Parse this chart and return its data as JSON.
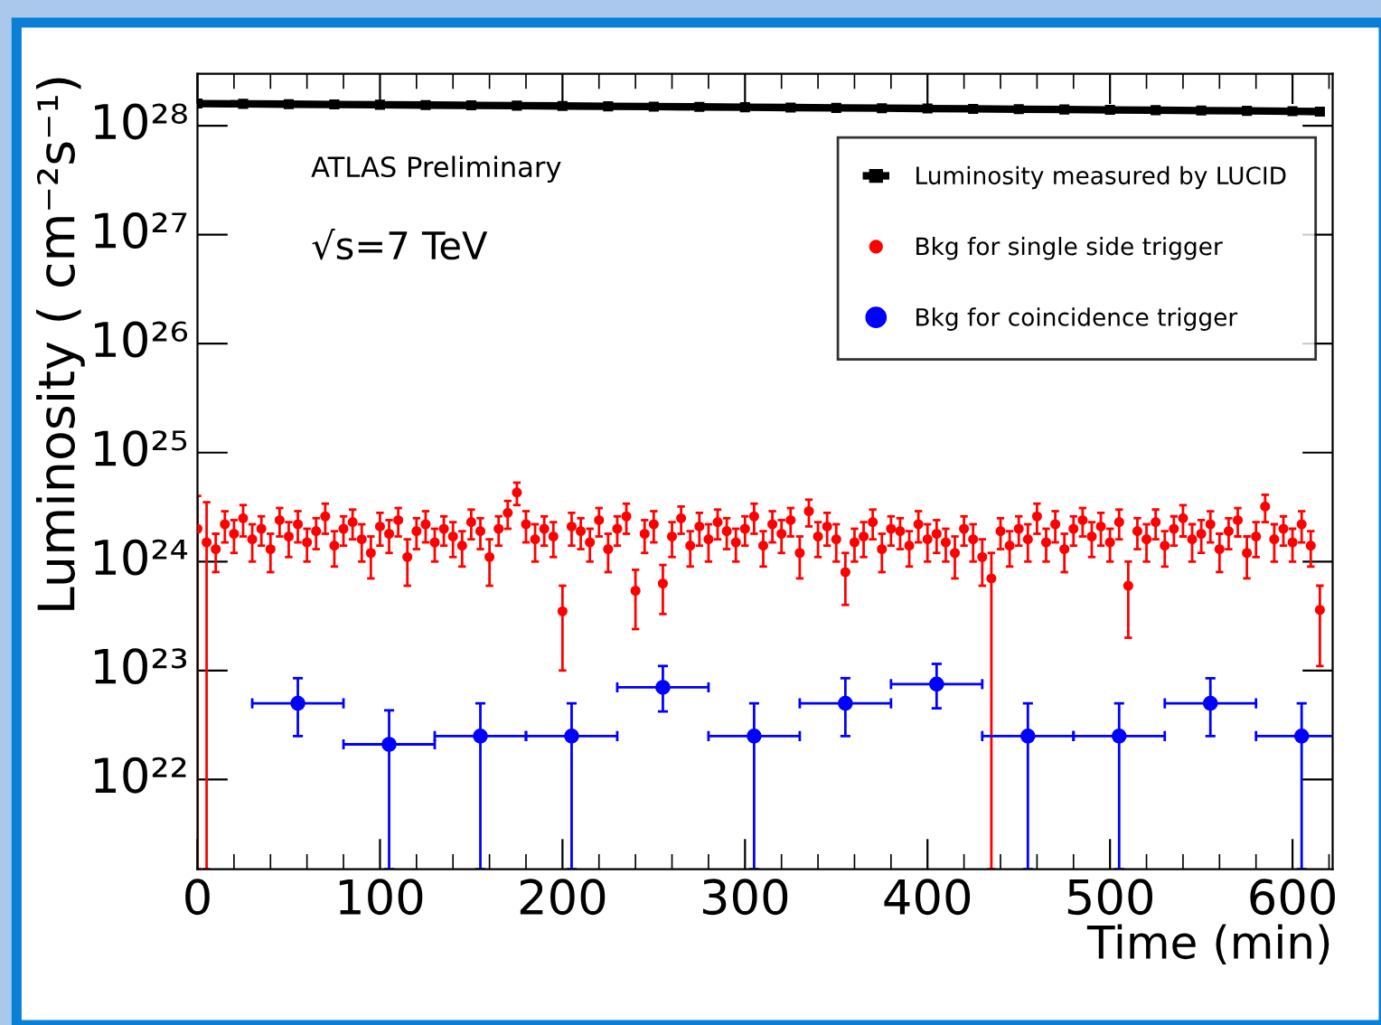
{
  "chart_data": {
    "type": "scatter",
    "xlabel": "Time (min)",
    "ylabel": "Luminosity ( cm⁻²s⁻¹)",
    "log": "y",
    "xlim": [
      0,
      622
    ],
    "ylim": [
      1.5e+21,
      3e+28
    ],
    "xticks": [
      0,
      100,
      200,
      300,
      400,
      500,
      600
    ],
    "yticks": [
      {
        "value": 1e+22,
        "label": "10²²"
      },
      {
        "value": 1e+23,
        "label": "10²³"
      },
      {
        "value": 1e+24,
        "label": "10²⁴"
      },
      {
        "value": 1e+25,
        "label": "10²⁵"
      },
      {
        "value": 1e+26,
        "label": "10²⁶"
      },
      {
        "value": 1e+27,
        "label": "10²⁷"
      },
      {
        "value": 1e+28,
        "label": "10²⁸"
      }
    ],
    "grid": false,
    "legend": "top right",
    "annotations": [
      "ATLAS Preliminary",
      "√s=7 TeV"
    ],
    "series": [
      {
        "name": "Luminosity measured by LUCID",
        "type": "line",
        "marker": "square",
        "color": "#000000",
        "x": [
          0,
          25,
          50,
          75,
          100,
          125,
          150,
          175,
          200,
          225,
          250,
          275,
          300,
          325,
          350,
          375,
          400,
          425,
          450,
          475,
          500,
          525,
          550,
          575,
          600,
          615
        ],
        "values": [
          1.6e+28,
          1.59e+28,
          1.58e+28,
          1.57e+28,
          1.56e+28,
          1.55e+28,
          1.54e+28,
          1.53e+28,
          1.52e+28,
          1.51e+28,
          1.5e+28,
          1.49e+28,
          1.48e+28,
          1.47e+28,
          1.46e+28,
          1.45e+28,
          1.44e+28,
          1.43e+28,
          1.42e+28,
          1.41e+28,
          1.4e+28,
          1.39e+28,
          1.38e+28,
          1.37e+28,
          1.36e+28,
          1.35e+28
        ]
      },
      {
        "name": "Bkg for single side trigger",
        "marker": "circle",
        "color": "#ff0000",
        "x": [
          0,
          5,
          10,
          15,
          20,
          25,
          30,
          35,
          40,
          45,
          50,
          55,
          60,
          65,
          70,
          75,
          80,
          85,
          90,
          95,
          100,
          105,
          110,
          115,
          120,
          125,
          130,
          135,
          140,
          145,
          150,
          155,
          160,
          165,
          170,
          175,
          180,
          185,
          190,
          195,
          200,
          205,
          210,
          215,
          220,
          225,
          230,
          235,
          240,
          245,
          250,
          255,
          260,
          265,
          270,
          275,
          280,
          285,
          290,
          295,
          300,
          305,
          310,
          315,
          320,
          325,
          330,
          335,
          340,
          345,
          350,
          355,
          360,
          365,
          370,
          375,
          380,
          385,
          390,
          395,
          400,
          405,
          410,
          415,
          420,
          425,
          430,
          435,
          440,
          445,
          450,
          455,
          460,
          465,
          470,
          475,
          480,
          485,
          490,
          495,
          500,
          505,
          510,
          515,
          520,
          525,
          530,
          535,
          540,
          545,
          550,
          555,
          560,
          565,
          570,
          575,
          580,
          585,
          590,
          595,
          600,
          605,
          610,
          615
        ],
        "values": [
          2e+24,
          1.5e+24,
          1.3e+24,
          2.2e+24,
          1.8e+24,
          2.5e+24,
          1.6e+24,
          2e+24,
          1.3e+24,
          2.4e+24,
          1.7e+24,
          2.2e+24,
          1.5e+24,
          1.9e+24,
          2.6e+24,
          1.4e+24,
          2e+24,
          2.3e+24,
          1.6e+24,
          1.2e+24,
          2.1e+24,
          1.8e+24,
          2.4e+24,
          1.1e+24,
          1.9e+24,
          2.2e+24,
          1.5e+24,
          2e+24,
          1.7e+24,
          1.4e+24,
          2.3e+24,
          1.9e+24,
          1.1e+24,
          2e+24,
          2.8e+24,
          4.3e+24,
          2.2e+24,
          1.6e+24,
          2e+24,
          1.7e+24,
          3.5e+23,
          2.1e+24,
          1.9e+24,
          1.5e+24,
          2.4e+24,
          1.3e+24,
          2e+24,
          2.6e+24,
          5.4e+23,
          1.8e+24,
          2.2e+24,
          6.3e+23,
          1.7e+24,
          2.5e+24,
          1.4e+24,
          2.1e+24,
          1.6e+24,
          2.3e+24,
          1.9e+24,
          1.5e+24,
          2e+24,
          2.6e+24,
          1.4e+24,
          2.2e+24,
          1.8e+24,
          2.4e+24,
          1.2e+24,
          2.9e+24,
          1.7e+24,
          2.1e+24,
          1.6e+24,
          8e+23,
          1.5e+24,
          1.7e+24,
          2.3e+24,
          1.3e+24,
          2e+24,
          1.9e+24,
          1.4e+24,
          2.2e+24,
          1.6e+24,
          1.8e+24,
          1.5e+24,
          1.2e+24,
          2e+24,
          1.6e+24,
          1.1e+24,
          7e+23,
          1.9e+24,
          1.4e+24,
          2e+24,
          1.6e+24,
          2.6e+24,
          1.5e+24,
          2.2e+24,
          1.3e+24,
          2e+24,
          2.4e+24,
          1.7e+24,
          2.1e+24,
          1.5e+24,
          2.3e+24,
          6e+23,
          1.9e+24,
          1.6e+24,
          2.3e+24,
          1.4e+24,
          2e+24,
          2.5e+24,
          1.6e+24,
          1.8e+24,
          2.2e+24,
          1.3e+24,
          1.9e+24,
          2.4e+24,
          1.2e+24,
          1.7e+24,
          3.2e+24,
          1.6e+24,
          2e+24,
          1.5e+24,
          2.2e+24,
          1.4e+24,
          3.6e+23
        ],
        "errors": [
          [
            1.5e+21,
            4e+24
          ],
          [
            1.5e+21,
            3.5e+24
          ],
          5e+23,
          7e+23,
          6e+23,
          8e+23,
          6e+23,
          6e+23,
          5e+23,
          7e+23,
          6e+23,
          7e+23,
          5e+23,
          6e+23,
          8e+23,
          5e+23,
          6e+23,
          7e+23,
          6e+23,
          5e+23,
          7e+23,
          6e+23,
          7e+23,
          5e+23,
          6e+23,
          7e+23,
          5e+23,
          6e+23,
          6e+23,
          5e+23,
          7e+23,
          6e+23,
          5e+23,
          6e+23,
          8e+23,
          1e+24,
          7e+23,
          6e+23,
          6e+23,
          6e+23,
          2.5e+23,
          7e+23,
          6e+23,
          5e+23,
          7e+23,
          5e+23,
          6e+23,
          8e+23,
          3e+23,
          6e+23,
          7e+23,
          3e+23,
          6e+23,
          7e+23,
          5e+23,
          7e+23,
          6e+23,
          7e+23,
          6e+23,
          5e+23,
          6e+23,
          8e+23,
          5e+23,
          7e+23,
          6e+23,
          7e+23,
          5e+23,
          8e+23,
          6e+23,
          7e+23,
          6e+23,
          4e+23,
          5e+23,
          6e+23,
          7e+23,
          5e+23,
          6e+23,
          6e+23,
          5e+23,
          7e+23,
          6e+23,
          6e+23,
          5e+23,
          5e+23,
          6e+23,
          6e+23,
          5e+23,
          [
            1.5e+21,
            1.2e+24
          ],
          6e+23,
          5e+23,
          6e+23,
          6e+23,
          8e+23,
          5e+23,
          7e+23,
          5e+23,
          6e+23,
          7e+23,
          6e+23,
          7e+23,
          5e+23,
          7e+23,
          4e+23,
          6e+23,
          6e+23,
          7e+23,
          5e+23,
          6e+23,
          8e+23,
          6e+23,
          6e+23,
          7e+23,
          5e+23,
          6e+23,
          7e+23,
          5e+23,
          6e+23,
          9e+23,
          6e+23,
          6e+23,
          5e+23,
          7e+23,
          5e+23,
          [
            1.1e+23,
            6e+23
          ]
        ]
      },
      {
        "name": "Bkg for coincidence trigger",
        "marker": "circle",
        "color": "#0000ff",
        "x": [
          55,
          105,
          155,
          205,
          255,
          305,
          355,
          405,
          455,
          505,
          555,
          605
        ],
        "values": [
          5e+22,
          2.1e+22,
          2.5e+22,
          2.5e+22,
          7e+22,
          2.5e+22,
          5e+22,
          7.5e+22,
          2.5e+22,
          2.5e+22,
          5e+22,
          2.5e+22
        ],
        "errors": [
          [
            2.5e+22,
            8.5e+22
          ],
          [
            1.5e+21,
            4.3e+22
          ],
          [
            1.5e+21,
            5e+22
          ],
          [
            1.5e+21,
            5e+22
          ],
          [
            4.2e+22,
            1.1e+23
          ],
          [
            1.5e+21,
            5e+22
          ],
          [
            2.5e+22,
            8.5e+22
          ],
          [
            4.5e+22,
            1.15e+23
          ],
          [
            1.5e+21,
            5e+22
          ],
          [
            1.5e+21,
            5e+22
          ],
          [
            2.5e+22,
            8.5e+22
          ],
          [
            1.5e+21,
            5e+22
          ]
        ],
        "xerrors": [
          25,
          25,
          25,
          25,
          25,
          25,
          25,
          25,
          25,
          25,
          25,
          25
        ]
      }
    ]
  }
}
